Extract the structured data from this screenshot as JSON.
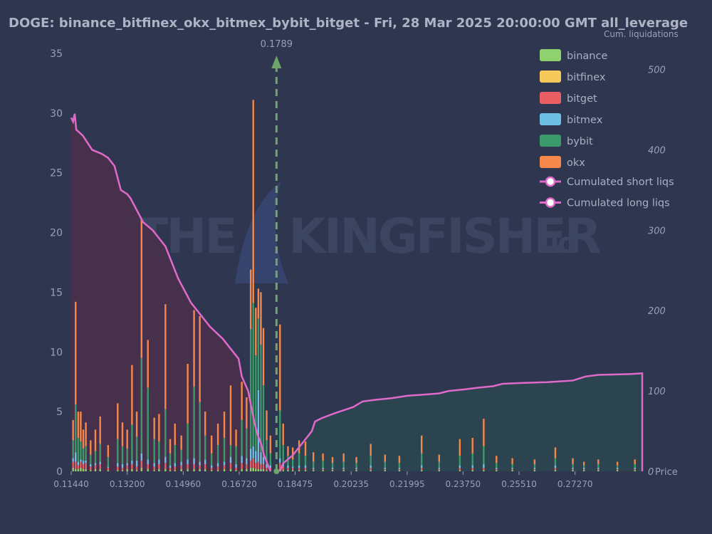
{
  "chart_data": {
    "type": "bar",
    "title": "DOGE: binance_bitfinex_okx_bitmex_bybit_bitget - Fri, 28 Mar 2025 20:00:00 GMT all_leverage",
    "right_axis_label": "Cum. liquidations",
    "x_axis_label": "Price",
    "current_price_label": "0.1789",
    "current_price": 0.1789,
    "x_range": [
      0.1144,
      0.2938
    ],
    "x_ticks": [
      "0.11440",
      "0.13200",
      "0.14960",
      "0.16720",
      "0.18475",
      "0.20235",
      "0.21995",
      "0.23750",
      "0.25510",
      "0.27270"
    ],
    "y_left": {
      "range": [
        0,
        35
      ],
      "ticks": [
        0,
        5,
        10,
        15,
        20,
        25,
        30,
        35
      ]
    },
    "y_right": {
      "range": [
        0,
        520
      ],
      "ticks": [
        0,
        100,
        200,
        300,
        400,
        500
      ]
    },
    "stacked": true,
    "legend_position": "top-right",
    "series": [
      {
        "name": "binance",
        "color": "#8fd16f"
      },
      {
        "name": "bitfinex",
        "color": "#f5c95a"
      },
      {
        "name": "bitget",
        "color": "#e85e63"
      },
      {
        "name": "bitmex",
        "color": "#6ec0e4"
      },
      {
        "name": "bybit",
        "color": "#3a9a6a"
      },
      {
        "name": "okx",
        "color": "#f5884a"
      }
    ],
    "bars": [
      {
        "x": 0.115,
        "v": [
          0.3,
          0,
          0.5,
          0.3,
          1.5,
          1.7
        ]
      },
      {
        "x": 0.1158,
        "v": [
          0.2,
          0,
          0.6,
          0.8,
          4.0,
          8.6
        ]
      },
      {
        "x": 0.1166,
        "v": [
          0.2,
          0,
          0.3,
          0.3,
          2.0,
          2.2
        ]
      },
      {
        "x": 0.1174,
        "v": [
          0.3,
          0,
          0.5,
          0.2,
          1.5,
          2.5
        ]
      },
      {
        "x": 0.1182,
        "v": [
          0.2,
          0,
          0.4,
          0.3,
          1.0,
          1.6
        ]
      },
      {
        "x": 0.119,
        "v": [
          0.2,
          0,
          0.5,
          0.2,
          1.2,
          2.0
        ]
      },
      {
        "x": 0.1205,
        "v": [
          0.1,
          0,
          0.3,
          0.2,
          0.8,
          1.2
        ]
      },
      {
        "x": 0.122,
        "v": [
          0.2,
          0,
          0.3,
          0.2,
          1.0,
          1.8
        ]
      },
      {
        "x": 0.1235,
        "v": [
          0.2,
          0,
          0.4,
          0.2,
          1.5,
          2.3
        ]
      },
      {
        "x": 0.126,
        "v": [
          0.1,
          0,
          0.2,
          0.1,
          0.8,
          1.0
        ]
      },
      {
        "x": 0.129,
        "v": [
          0.1,
          0,
          0.3,
          0.3,
          2.0,
          3.0
        ]
      },
      {
        "x": 0.1305,
        "v": [
          0.1,
          0,
          0.2,
          0.3,
          1.5,
          2.0
        ]
      },
      {
        "x": 0.132,
        "v": [
          0.2,
          0,
          0.3,
          0.2,
          1.2,
          1.6
        ]
      },
      {
        "x": 0.1335,
        "v": [
          0.2,
          0,
          0.4,
          0.3,
          3.0,
          5.0
        ]
      },
      {
        "x": 0.135,
        "v": [
          0.1,
          0,
          0.3,
          0.5,
          2.0,
          2.1
        ]
      },
      {
        "x": 0.1365,
        "v": [
          0.3,
          0,
          0.6,
          0.6,
          8.0,
          11.6
        ]
      },
      {
        "x": 0.1385,
        "v": [
          0.2,
          0,
          0.4,
          0.4,
          6.0,
          4.0
        ]
      },
      {
        "x": 0.1405,
        "v": [
          0.1,
          0,
          0.3,
          0.3,
          2.0,
          1.8
        ]
      },
      {
        "x": 0.142,
        "v": [
          0.2,
          0,
          0.4,
          0.4,
          1.5,
          2.3
        ]
      },
      {
        "x": 0.144,
        "v": [
          0.2,
          0,
          0.5,
          0.5,
          4.0,
          8.8
        ]
      },
      {
        "x": 0.1455,
        "v": [
          0.1,
          0,
          0.2,
          0.2,
          1.0,
          1.2
        ]
      },
      {
        "x": 0.147,
        "v": [
          0.1,
          0,
          0.3,
          0.3,
          1.5,
          1.8
        ]
      },
      {
        "x": 0.149,
        "v": [
          0.2,
          0,
          0.3,
          0.3,
          1.0,
          1.2
        ]
      },
      {
        "x": 0.151,
        "v": [
          0.2,
          0,
          0.4,
          0.4,
          3.0,
          5.0
        ]
      },
      {
        "x": 0.153,
        "v": [
          0.2,
          0,
          0.4,
          0.5,
          6.0,
          6.4
        ]
      },
      {
        "x": 0.1548,
        "v": [
          0.2,
          0,
          0.3,
          0.3,
          5.0,
          7.2
        ]
      },
      {
        "x": 0.1565,
        "v": [
          0.2,
          0,
          0.4,
          0.4,
          2.0,
          2.0
        ]
      },
      {
        "x": 0.1585,
        "v": [
          0.1,
          0,
          0.2,
          0.2,
          1.0,
          1.5
        ]
      },
      {
        "x": 0.1605,
        "v": [
          0.1,
          0,
          0.3,
          0.3,
          1.5,
          1.8
        ]
      },
      {
        "x": 0.1625,
        "v": [
          0.2,
          0,
          0.3,
          0.3,
          2.0,
          2.2
        ]
      },
      {
        "x": 0.1645,
        "v": [
          0.2,
          0,
          0.5,
          0.5,
          1.0,
          5.0
        ]
      },
      {
        "x": 0.1662,
        "v": [
          0.1,
          0,
          0.2,
          0.3,
          1.5,
          1.4
        ]
      },
      {
        "x": 0.168,
        "v": [
          0.2,
          0,
          0.5,
          0.6,
          3.0,
          3.2
        ]
      },
      {
        "x": 0.1695,
        "v": [
          0.2,
          0,
          0.4,
          0.5,
          2.5,
          2.6
        ]
      },
      {
        "x": 0.1708,
        "v": [
          0.3,
          0,
          0.6,
          1.0,
          10.0,
          5.0
        ]
      },
      {
        "x": 0.1716,
        "v": [
          0.3,
          0,
          0.8,
          1.0,
          12.0,
          17.0
        ]
      },
      {
        "x": 0.1724,
        "v": [
          0.2,
          0,
          0.5,
          1.0,
          8.0,
          4.0
        ]
      },
      {
        "x": 0.1732,
        "v": [
          0.2,
          0,
          0.6,
          6.0,
          6.0,
          2.5
        ]
      },
      {
        "x": 0.174,
        "v": [
          0.2,
          0,
          0.4,
          1.0,
          9.0,
          4.4
        ]
      },
      {
        "x": 0.1748,
        "v": [
          0.2,
          0,
          0.4,
          0.6,
          6.0,
          4.8
        ]
      },
      {
        "x": 0.1758,
        "v": [
          0.1,
          0,
          0.2,
          0.3,
          2.0,
          2.5
        ]
      },
      {
        "x": 0.177,
        "v": [
          0.1,
          0,
          0.2,
          0.2,
          1.0,
          1.5
        ]
      },
      {
        "x": 0.18,
        "v": [
          0.2,
          0,
          0.5,
          0.4,
          4.0,
          7.2
        ]
      },
      {
        "x": 0.181,
        "v": [
          0.1,
          0,
          0.3,
          0.3,
          1.5,
          1.8
        ]
      },
      {
        "x": 0.1825,
        "v": [
          0.1,
          0,
          0.2,
          0.2,
          0.8,
          0.8
        ]
      },
      {
        "x": 0.184,
        "v": [
          0.1,
          0,
          0.2,
          0.1,
          0.6,
          1.0
        ]
      },
      {
        "x": 0.186,
        "v": [
          0.1,
          0,
          0.2,
          0.2,
          1.0,
          1.1
        ]
      },
      {
        "x": 0.188,
        "v": [
          0.1,
          0,
          0.2,
          0.2,
          0.8,
          1.2
        ]
      },
      {
        "x": 0.1905,
        "v": [
          0.1,
          0,
          0.1,
          0.1,
          0.5,
          0.8
        ]
      },
      {
        "x": 0.1935,
        "v": [
          0.1,
          0,
          0.1,
          0.1,
          0.6,
          0.6
        ]
      },
      {
        "x": 0.1965,
        "v": [
          0.1,
          0,
          0.1,
          0.1,
          0.4,
          0.5
        ]
      },
      {
        "x": 0.2,
        "v": [
          0.1,
          0,
          0.1,
          0.1,
          0.5,
          0.7
        ]
      },
      {
        "x": 0.204,
        "v": [
          0.1,
          0,
          0.1,
          0.1,
          0.4,
          0.5
        ]
      },
      {
        "x": 0.2085,
        "v": [
          0.1,
          0,
          0.2,
          0.2,
          0.8,
          1.0
        ]
      },
      {
        "x": 0.213,
        "v": [
          0.1,
          0,
          0.1,
          0.1,
          0.5,
          0.6
        ]
      },
      {
        "x": 0.2175,
        "v": [
          0.1,
          0,
          0.1,
          0.1,
          0.4,
          0.6
        ]
      },
      {
        "x": 0.2245,
        "v": [
          0.1,
          0,
          0.2,
          0.2,
          1.0,
          1.5
        ]
      },
      {
        "x": 0.23,
        "v": [
          0.1,
          0,
          0.1,
          0.1,
          0.5,
          0.6
        ]
      },
      {
        "x": 0.2365,
        "v": [
          0.1,
          0,
          0.2,
          0.2,
          0.8,
          1.4
        ]
      },
      {
        "x": 0.2405,
        "v": [
          0.1,
          0,
          0.2,
          0.2,
          1.0,
          1.3
        ]
      },
      {
        "x": 0.244,
        "v": [
          0.1,
          0,
          0.2,
          0.3,
          1.5,
          2.3
        ]
      },
      {
        "x": 0.248,
        "v": [
          0.1,
          0,
          0.1,
          0.1,
          0.4,
          0.6
        ]
      },
      {
        "x": 0.253,
        "v": [
          0.1,
          0,
          0.1,
          0.1,
          0.3,
          0.5
        ]
      },
      {
        "x": 0.26,
        "v": [
          0.1,
          0,
          0.1,
          0.1,
          0.3,
          0.4
        ]
      },
      {
        "x": 0.2665,
        "v": [
          0.1,
          0,
          0.2,
          0.2,
          0.6,
          0.9
        ]
      },
      {
        "x": 0.272,
        "v": [
          0.1,
          0,
          0.1,
          0.1,
          0.3,
          0.5
        ]
      },
      {
        "x": 0.2755,
        "v": [
          0.1,
          0,
          0.1,
          0.1,
          0.2,
          0.3
        ]
      },
      {
        "x": 0.28,
        "v": [
          0.1,
          0,
          0.1,
          0.1,
          0.3,
          0.4
        ]
      },
      {
        "x": 0.286,
        "v": [
          0.1,
          0,
          0.1,
          0.1,
          0.2,
          0.3
        ]
      },
      {
        "x": 0.2915,
        "v": [
          0.1,
          0,
          0.1,
          0.1,
          0.3,
          0.4
        ]
      }
    ],
    "cum_short": {
      "name": "Cumulated short liqs",
      "color": "#e06ac9",
      "points": [
        [
          0.18,
          0
        ],
        [
          0.181,
          10
        ],
        [
          0.184,
          20
        ],
        [
          0.186,
          30
        ],
        [
          0.188,
          40
        ],
        [
          0.19,
          50
        ],
        [
          0.191,
          62
        ],
        [
          0.193,
          66
        ],
        [
          0.197,
          72
        ],
        [
          0.2,
          76
        ],
        [
          0.203,
          80
        ],
        [
          0.206,
          87
        ],
        [
          0.21,
          89
        ],
        [
          0.215,
          91
        ],
        [
          0.22,
          94
        ],
        [
          0.227,
          96
        ],
        [
          0.23,
          97
        ],
        [
          0.233,
          100
        ],
        [
          0.238,
          102
        ],
        [
          0.242,
          104
        ],
        [
          0.247,
          106
        ],
        [
          0.25,
          109
        ],
        [
          0.256,
          110
        ],
        [
          0.264,
          111
        ],
        [
          0.272,
          113
        ],
        [
          0.276,
          118
        ],
        [
          0.28,
          120
        ],
        [
          0.29,
          121
        ],
        [
          0.2938,
          122
        ]
      ]
    },
    "cum_long": {
      "name": "Cumulated long liqs",
      "color": "#e06ac9",
      "points": [
        [
          0.1144,
          440
        ],
        [
          0.115,
          435
        ],
        [
          0.1155,
          445
        ],
        [
          0.116,
          425
        ],
        [
          0.118,
          418
        ],
        [
          0.121,
          400
        ],
        [
          0.124,
          395
        ],
        [
          0.126,
          390
        ],
        [
          0.128,
          380
        ],
        [
          0.13,
          350
        ],
        [
          0.132,
          345
        ],
        [
          0.133,
          340
        ],
        [
          0.135,
          325
        ],
        [
          0.137,
          310
        ],
        [
          0.14,
          300
        ],
        [
          0.142,
          290
        ],
        [
          0.144,
          280
        ],
        [
          0.146,
          260
        ],
        [
          0.148,
          240
        ],
        [
          0.15,
          225
        ],
        [
          0.152,
          210
        ],
        [
          0.154,
          200
        ],
        [
          0.158,
          180
        ],
        [
          0.162,
          165
        ],
        [
          0.165,
          150
        ],
        [
          0.167,
          140
        ],
        [
          0.168,
          118
        ],
        [
          0.17,
          100
        ],
        [
          0.171,
          80
        ],
        [
          0.172,
          60
        ],
        [
          0.173,
          45
        ],
        [
          0.174,
          35
        ],
        [
          0.175,
          20
        ],
        [
          0.176,
          10
        ],
        [
          0.177,
          0
        ]
      ]
    },
    "legend": [
      "binance",
      "bitfinex",
      "bitget",
      "bitmex",
      "bybit",
      "okx",
      "Cumulated short liqs",
      "Cumulated long liqs"
    ]
  }
}
